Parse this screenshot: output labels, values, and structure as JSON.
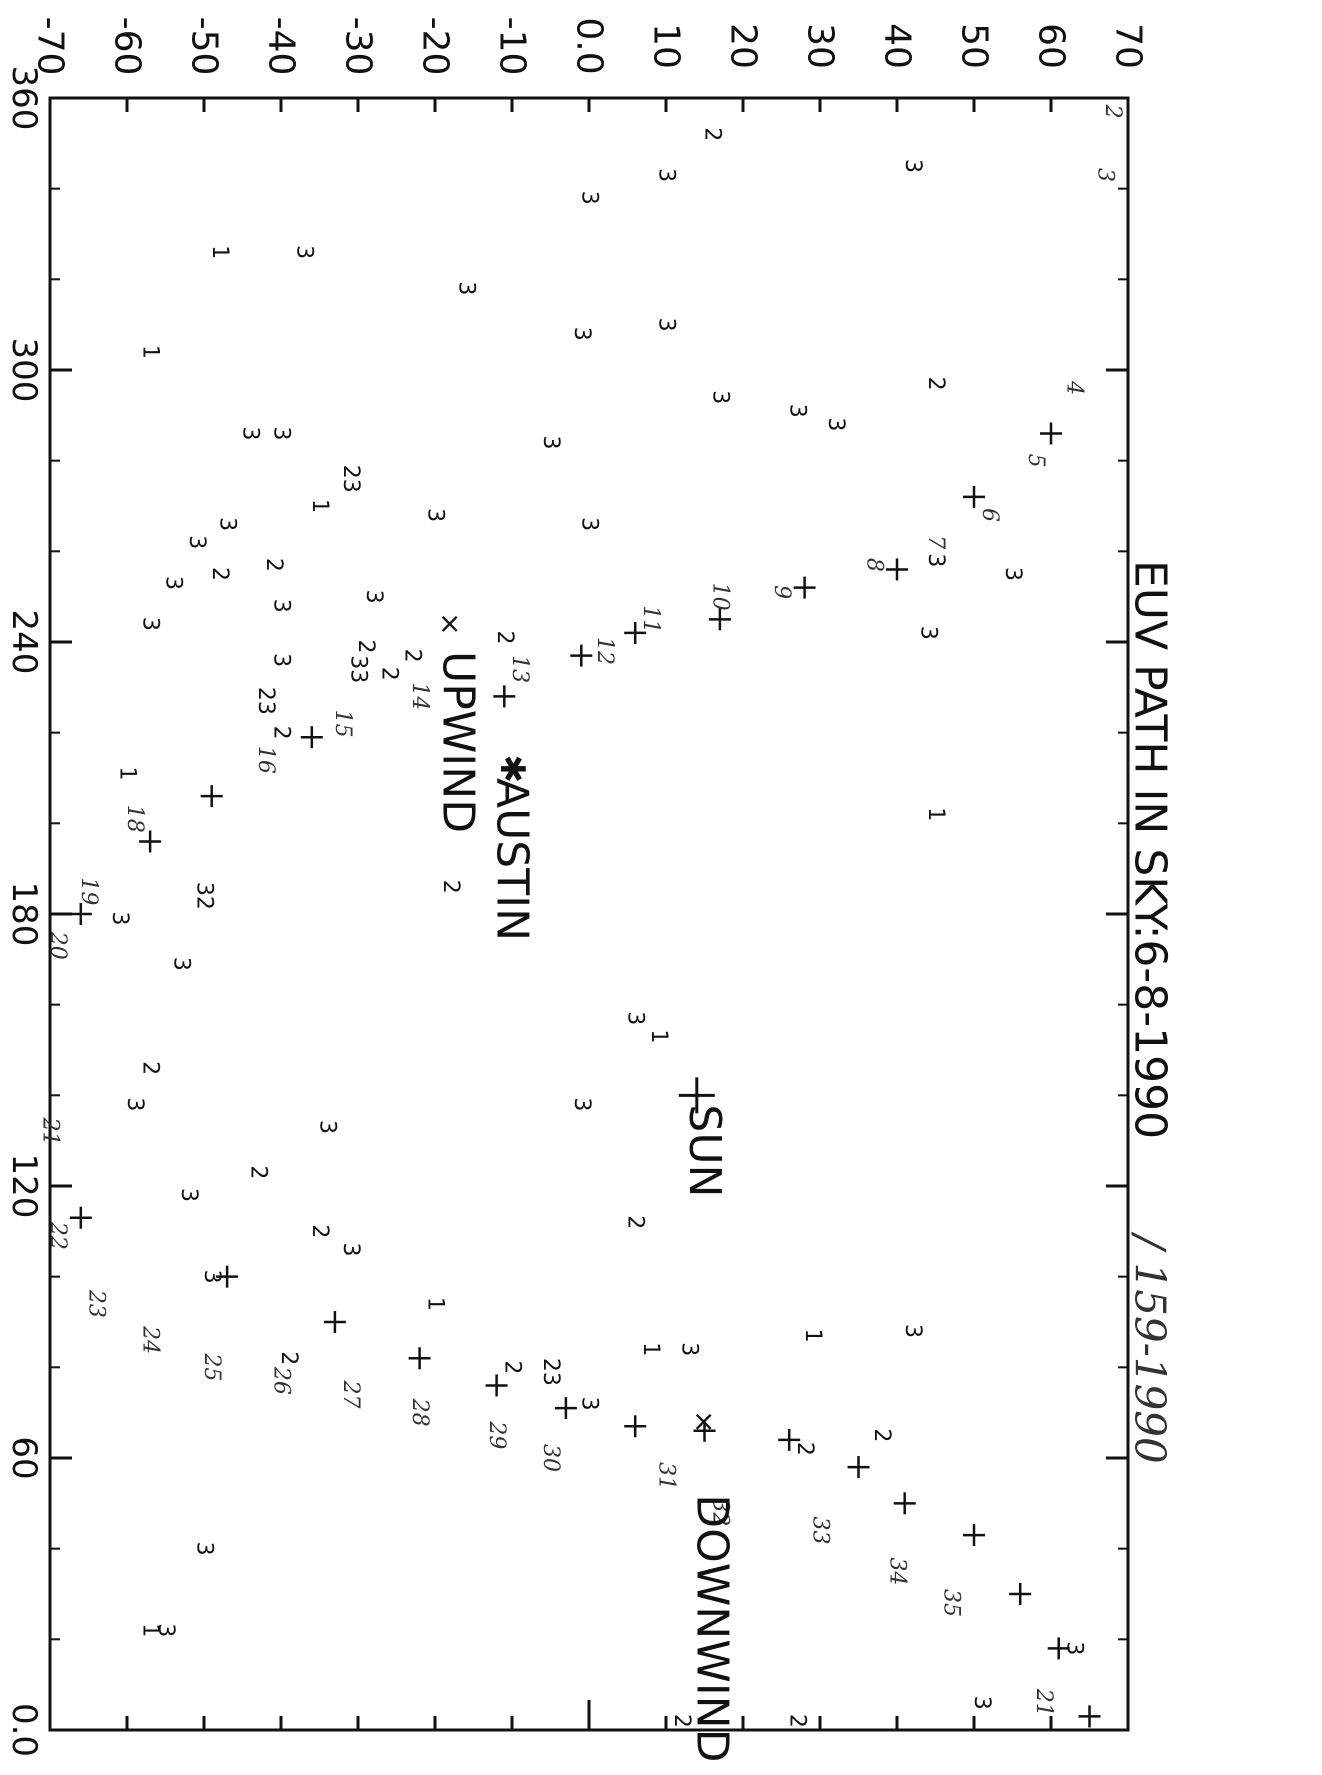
{
  "chart_data": {
    "type": "scatter",
    "title": "EUV PATH IN SKY:6-8-1990",
    "annotation": "/ 159-1990",
    "xlim": [
      0.0,
      360
    ],
    "ylim": [
      -70,
      70
    ],
    "x_ticks": [
      360,
      300,
      240,
      180,
      120,
      60,
      "0.0"
    ],
    "y_ticks": [
      -70,
      -60,
      -50,
      -40,
      -30,
      -20,
      -10,
      "0.0",
      10,
      20,
      30,
      40,
      50,
      60,
      70
    ],
    "labels": [
      {
        "text": "SUN",
        "x": 138,
        "y": 15
      },
      {
        "text": "AUSTIN",
        "x": 210,
        "y": -10
      },
      {
        "text": "UPWIND",
        "x": 238,
        "y": -17
      },
      {
        "text": "DOWNWIND",
        "x": 52,
        "y": 16
      }
    ],
    "path_points": [
      {
        "x": 3,
        "y": 65
      },
      {
        "x": 18,
        "y": 61
      },
      {
        "x": 30,
        "y": 56
      },
      {
        "x": 43,
        "y": 50
      },
      {
        "x": 50,
        "y": 41
      },
      {
        "x": 58,
        "y": 35
      },
      {
        "x": 64,
        "y": 26
      },
      {
        "x": 66,
        "y": 15
      },
      {
        "x": 67,
        "y": 6
      },
      {
        "x": 71,
        "y": -3
      },
      {
        "x": 76,
        "y": -12
      },
      {
        "x": 82,
        "y": -22
      },
      {
        "x": 90,
        "y": -33
      },
      {
        "x": 100,
        "y": -47
      },
      {
        "x": 113,
        "y": -66
      },
      {
        "x": 228,
        "y": -11
      },
      {
        "x": 237,
        "y": -1
      },
      {
        "x": 242,
        "y": 6
      },
      {
        "x": 245,
        "y": 17
      },
      {
        "x": 252,
        "y": 28
      },
      {
        "x": 256,
        "y": 40
      },
      {
        "x": 272,
        "y": 50
      },
      {
        "x": 286,
        "y": 60
      },
      {
        "x": 219,
        "y": -36
      },
      {
        "x": 206,
        "y": -49
      },
      {
        "x": 196,
        "y": -57
      },
      {
        "x": 180,
        "y": -66
      }
    ],
    "path_numbers": [
      {
        "t": "21",
        "x": 6,
        "y": 59
      },
      {
        "x": 28,
        "y": 47,
        "t": "35"
      },
      {
        "x": 35,
        "y": 40,
        "t": "34"
      },
      {
        "x": 44,
        "y": 30,
        "t": "33"
      },
      {
        "x": 48,
        "y": 17,
        "t": "32"
      },
      {
        "x": 56,
        "y": 10,
        "t": "31"
      },
      {
        "x": 60,
        "y": -5,
        "t": "30"
      },
      {
        "x": 65,
        "y": -12,
        "t": "29"
      },
      {
        "x": 70,
        "y": -22,
        "t": "28"
      },
      {
        "x": 74,
        "y": -31,
        "t": "27"
      },
      {
        "x": 77,
        "y": -40,
        "t": "26"
      },
      {
        "x": 80,
        "y": -49,
        "t": "25"
      },
      {
        "x": 86,
        "y": -57,
        "t": "24"
      },
      {
        "x": 94,
        "y": -64,
        "t": "23"
      },
      {
        "x": 109,
        "y": -69,
        "t": "22"
      },
      {
        "x": 132,
        "y": -70,
        "t": "21"
      },
      {
        "x": 173,
        "y": -69,
        "t": "20"
      },
      {
        "x": 185,
        "y": -65,
        "t": "19"
      },
      {
        "x": 201,
        "y": -59,
        "t": "18"
      },
      {
        "x": 214,
        "y": -42,
        "t": "16"
      },
      {
        "x": 222,
        "y": -32,
        "t": "15"
      },
      {
        "x": 228,
        "y": -22,
        "t": "14"
      },
      {
        "x": 234,
        "y": -9,
        "t": "13"
      },
      {
        "x": 238,
        "y": 2,
        "t": "12"
      },
      {
        "x": 245,
        "y": 8,
        "t": "11"
      },
      {
        "x": 250,
        "y": 17,
        "t": "10"
      },
      {
        "x": 251,
        "y": 25,
        "t": "9"
      },
      {
        "x": 257,
        "y": 37,
        "t": "8"
      },
      {
        "x": 262,
        "y": 45,
        "t": "7"
      },
      {
        "x": 268,
        "y": 52,
        "t": "6"
      },
      {
        "x": 280,
        "y": 58,
        "t": "5"
      },
      {
        "x": 296,
        "y": 63,
        "t": "4"
      },
      {
        "x": 343,
        "y": 67,
        "t": "3"
      },
      {
        "x": 357,
        "y": 68,
        "t": "2"
      }
    ],
    "scatter_points": [
      {
        "t": "3",
        "x": 345,
        "y": 42
      },
      {
        "t": "2",
        "x": 352,
        "y": 16
      },
      {
        "t": "3",
        "x": 343,
        "y": 10
      },
      {
        "t": "3",
        "x": 338,
        "y": 0
      },
      {
        "t": "1",
        "x": 326,
        "y": -48
      },
      {
        "t": "3",
        "x": 326,
        "y": -37
      },
      {
        "t": "3",
        "x": 318,
        "y": -16
      },
      {
        "t": "3",
        "x": 310,
        "y": 10
      },
      {
        "t": "3",
        "x": 308,
        "y": -1
      },
      {
        "t": "1",
        "x": 304,
        "y": -57
      },
      {
        "t": "2",
        "x": 297,
        "y": 45
      },
      {
        "t": "3",
        "x": 294,
        "y": 17
      },
      {
        "t": "3",
        "x": 291,
        "y": 27
      },
      {
        "t": "3",
        "x": 288,
        "y": 32
      },
      {
        "t": "3",
        "x": 286,
        "y": -40
      },
      {
        "t": "3",
        "x": 286,
        "y": -44
      },
      {
        "t": "3",
        "x": 284,
        "y": -5
      },
      {
        "t": "23",
        "x": 276,
        "y": -31
      },
      {
        "t": "1",
        "x": 270,
        "y": -35
      },
      {
        "t": "3",
        "x": 268,
        "y": -20
      },
      {
        "t": "3",
        "x": 266,
        "y": 0
      },
      {
        "t": "3",
        "x": 266,
        "y": -47
      },
      {
        "t": "3",
        "x": 262,
        "y": -51
      },
      {
        "t": "2",
        "x": 257,
        "y": -41
      },
      {
        "t": "3",
        "x": 258,
        "y": 45
      },
      {
        "t": "3",
        "x": 255,
        "y": 55
      },
      {
        "t": "2",
        "x": 255,
        "y": -48
      },
      {
        "t": "3",
        "x": 253,
        "y": -54
      },
      {
        "t": "3",
        "x": 250,
        "y": -28
      },
      {
        "t": "3",
        "x": 248,
        "y": -40
      },
      {
        "t": "3",
        "x": 244,
        "y": -57
      },
      {
        "t": "2",
        "x": 241,
        "y": -11
      },
      {
        "t": "2",
        "x": 239,
        "y": -29
      },
      {
        "t": "3",
        "x": 242,
        "y": 44
      },
      {
        "t": "2",
        "x": 237,
        "y": -23
      },
      {
        "t": "3",
        "x": 236,
        "y": -40
      },
      {
        "t": "2",
        "x": 233,
        "y": -26
      },
      {
        "t": "33",
        "x": 234,
        "y": -30
      },
      {
        "t": "23",
        "x": 227,
        "y": -42
      },
      {
        "t": "2",
        "x": 220,
        "y": -40
      },
      {
        "t": "1",
        "x": 202,
        "y": 45
      },
      {
        "t": "1",
        "x": 211,
        "y": -60
      },
      {
        "t": "2",
        "x": 186,
        "y": -18
      },
      {
        "t": "32",
        "x": 184,
        "y": -50
      },
      {
        "t": "3",
        "x": 179,
        "y": -61
      },
      {
        "t": "3",
        "x": 169,
        "y": -53
      },
      {
        "t": "3",
        "x": 157,
        "y": 6
      },
      {
        "t": "1",
        "x": 153,
        "y": 9
      },
      {
        "t": "3",
        "x": 138,
        "y": -1
      },
      {
        "t": "2",
        "x": 146,
        "y": -57
      },
      {
        "t": "3",
        "x": 138,
        "y": -59
      },
      {
        "t": "3",
        "x": 133,
        "y": -34
      },
      {
        "t": "2",
        "x": 123,
        "y": -43
      },
      {
        "t": "3",
        "x": 118,
        "y": -52
      },
      {
        "t": "2",
        "x": 112,
        "y": 6
      },
      {
        "t": "2",
        "x": 110,
        "y": -35
      },
      {
        "t": "3",
        "x": 106,
        "y": -31
      },
      {
        "t": "3",
        "x": 100,
        "y": -49
      },
      {
        "t": "1",
        "x": 94,
        "y": -20
      },
      {
        "t": "2",
        "x": 82,
        "y": -39
      },
      {
        "t": "2",
        "x": 80,
        "y": -10
      },
      {
        "t": "23",
        "x": 79,
        "y": -5
      },
      {
        "t": "1",
        "x": 84,
        "y": 8
      },
      {
        "t": "3",
        "x": 84,
        "y": 13
      },
      {
        "t": "1",
        "x": 87,
        "y": 29
      },
      {
        "t": "3",
        "x": 88,
        "y": 42
      },
      {
        "t": "3",
        "x": 72,
        "y": 0
      },
      {
        "t": "2",
        "x": 62,
        "y": 28
      },
      {
        "t": "2",
        "x": 65,
        "y": 38
      },
      {
        "t": "3",
        "x": 40,
        "y": -50
      },
      {
        "t": "3",
        "x": 22,
        "y": -55
      },
      {
        "t": "1",
        "x": 22,
        "y": -57
      },
      {
        "t": "3",
        "x": 18,
        "y": 63
      },
      {
        "t": "3",
        "x": 6,
        "y": 51
      },
      {
        "t": "2",
        "x": 2,
        "y": 12
      },
      {
        "t": "2",
        "x": 2,
        "y": 27
      }
    ],
    "markers": [
      {
        "type": "plus",
        "x": 140,
        "y": 14
      },
      {
        "type": "star",
        "x": 212,
        "y": -10
      },
      {
        "type": "cross",
        "x": 244,
        "y": -18
      },
      {
        "type": "cross",
        "x": 68,
        "y": 15
      }
    ]
  }
}
